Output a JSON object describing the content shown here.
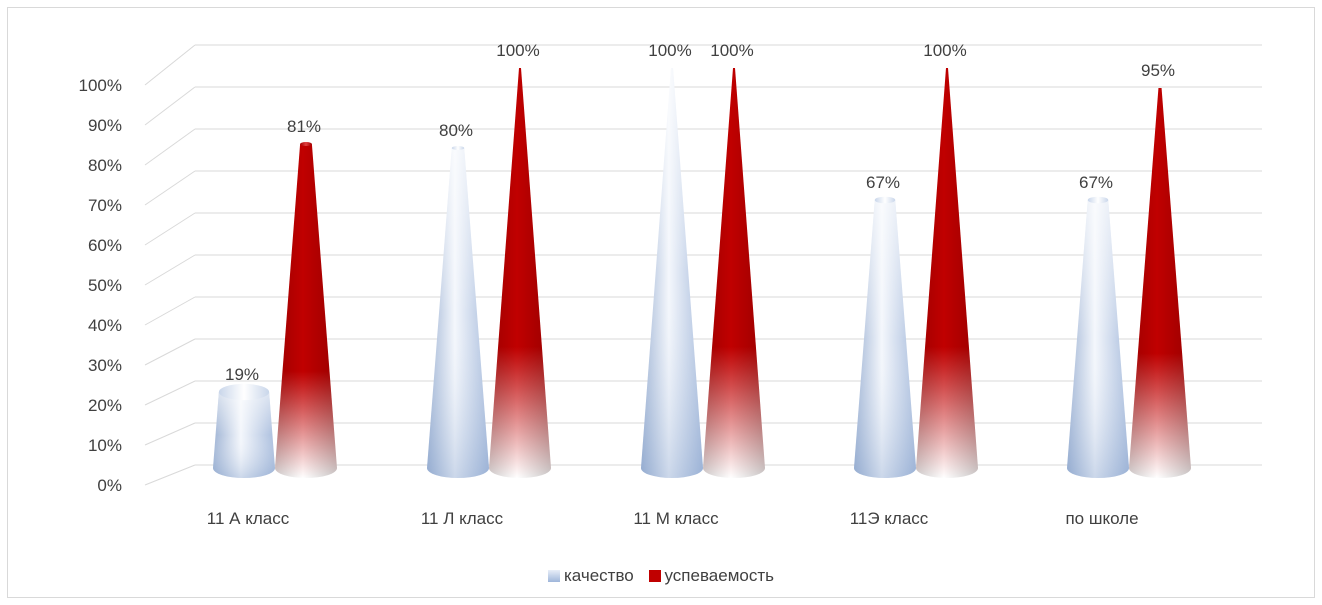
{
  "chart_data": {
    "type": "bar",
    "shape": "cone-3d",
    "title": "",
    "xlabel": "",
    "ylabel": "",
    "ylim": [
      0,
      100
    ],
    "y_ticks": [
      "0%",
      "10%",
      "20%",
      "30%",
      "40%",
      "50%",
      "60%",
      "70%",
      "80%",
      "90%",
      "100%"
    ],
    "grid": true,
    "legend_position": "bottom",
    "categories": [
      "11 А класс",
      "11 Л класс",
      "11 М класс",
      "11Э класс",
      "по школе"
    ],
    "series": [
      {
        "name": "качество",
        "color": "#b4c7e7",
        "values": [
          19,
          80,
          100,
          67,
          67
        ],
        "labels": [
          "19%",
          "80%",
          "100%",
          "67%",
          "67%"
        ]
      },
      {
        "name": "успеваемость",
        "color": "#c00000",
        "values": [
          81,
          100,
          100,
          100,
          95
        ],
        "labels": [
          "81%",
          "100%",
          "100%",
          "100%",
          "95%"
        ]
      }
    ]
  }
}
